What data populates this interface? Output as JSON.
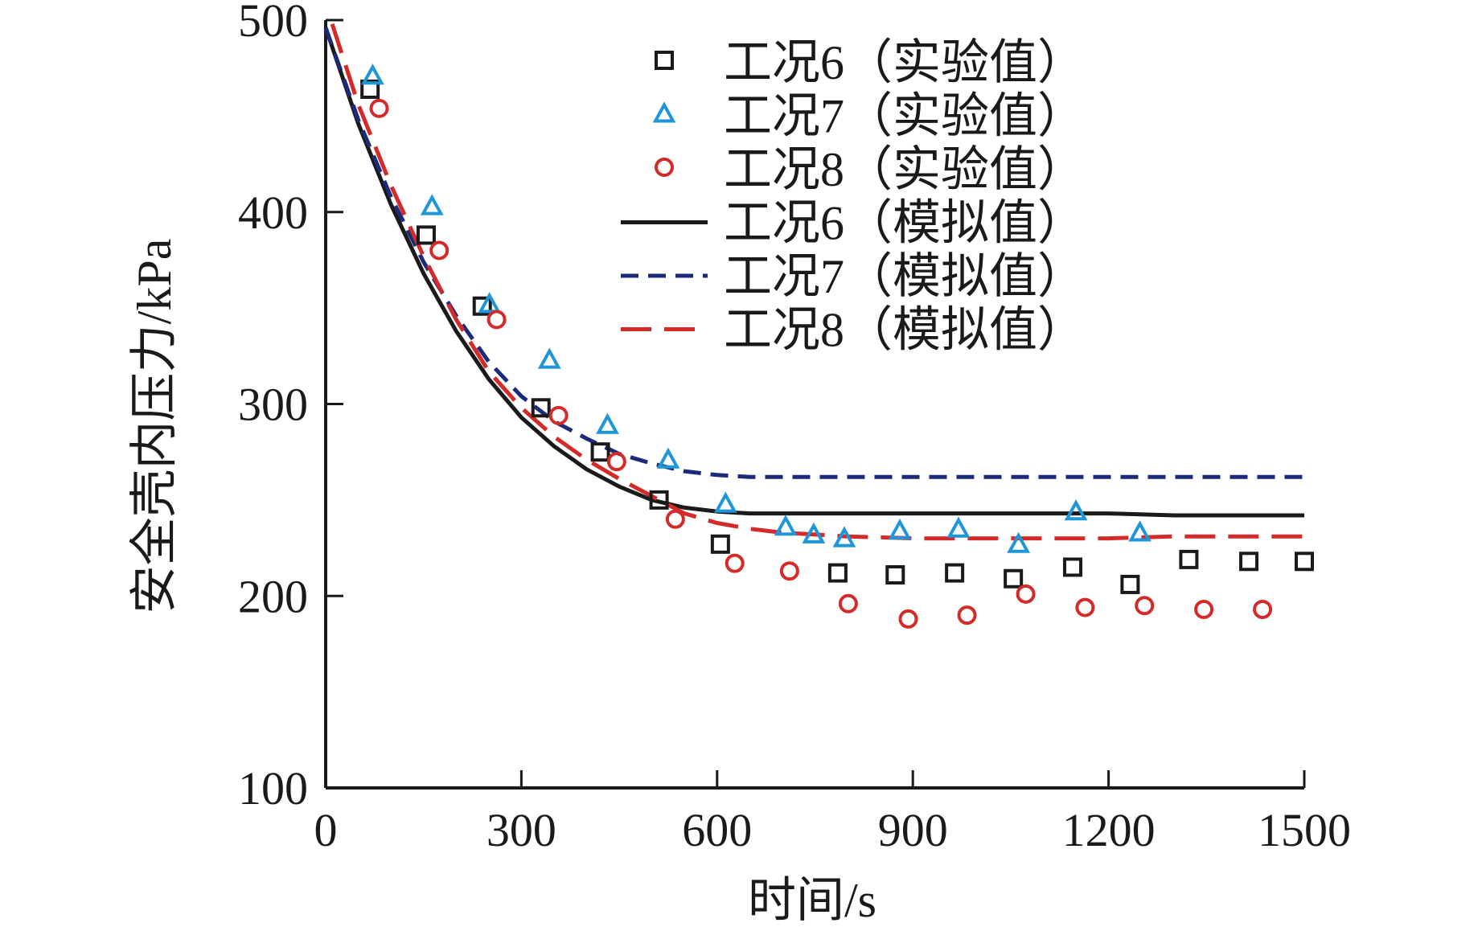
{
  "chart_data": {
    "type": "scatter",
    "xlabel": "时间/s",
    "ylabel": "安全壳内压力/kPa",
    "xlim": [
      0,
      1500
    ],
    "ylim": [
      100,
      500
    ],
    "xticks": [
      "0",
      "300",
      "600",
      "900",
      "1200",
      "1500"
    ],
    "yticks": [
      "100",
      "200",
      "300",
      "400",
      "500"
    ],
    "grid": false,
    "legend_position": "top-right",
    "series": [
      {
        "name": "工况6（实验值）",
        "kind": "marker",
        "marker": "square",
        "color": "#1a1a1a",
        "x": [
          68,
          154,
          240,
          330,
          421,
          511,
          605,
          785,
          873,
          964,
          1054,
          1145,
          1233,
          1323,
          1415,
          1500
        ],
        "y": [
          464,
          388,
          351,
          298,
          275,
          250,
          227,
          212,
          211,
          212,
          209,
          215,
          206,
          219,
          218,
          218
        ]
      },
      {
        "name": "工况7（实验值）",
        "kind": "marker",
        "marker": "triangle",
        "color": "#1e96d8",
        "x": [
          72,
          163,
          251,
          343,
          432,
          525,
          613,
          705,
          748,
          795,
          880,
          970,
          1062,
          1150,
          1248
        ],
        "y": [
          471,
          403,
          352,
          323,
          289,
          271,
          248,
          236,
          232,
          230,
          234,
          235,
          227,
          244,
          233
        ]
      },
      {
        "name": "工况8（实验值）",
        "kind": "marker",
        "marker": "circle",
        "color": "#d42a2a",
        "x": [
          82,
          174,
          262,
          357,
          446,
          536,
          627,
          711,
          801,
          893,
          983,
          1073,
          1164,
          1255,
          1346,
          1436
        ],
        "y": [
          454,
          380,
          344,
          294,
          270,
          240,
          217,
          213,
          196,
          188,
          190,
          201,
          194,
          195,
          193,
          193
        ]
      },
      {
        "name": "工况6（模拟值）",
        "kind": "line",
        "dash": "solid",
        "color": "#1a1a1a",
        "x": [
          0,
          50,
          100,
          150,
          200,
          250,
          300,
          350,
          400,
          450,
          500,
          550,
          600,
          650,
          700,
          800,
          900,
          1000,
          1100,
          1200,
          1300,
          1400,
          1500
        ],
        "y": [
          496,
          446,
          404,
          368,
          338,
          313,
          293,
          278,
          266,
          257,
          250,
          246,
          244,
          243,
          243,
          243,
          243,
          243,
          243,
          243,
          242,
          242,
          242
        ]
      },
      {
        "name": "工况7（模拟值）",
        "kind": "line",
        "dash": "medium",
        "color": "#1c2a7a",
        "x": [
          0,
          50,
          100,
          150,
          200,
          250,
          300,
          350,
          400,
          450,
          500,
          550,
          600,
          650,
          700,
          800,
          900,
          1000,
          1100,
          1200,
          1300,
          1400,
          1500
        ],
        "y": [
          496,
          448,
          408,
          374,
          346,
          322,
          304,
          291,
          282,
          274,
          269,
          265,
          263,
          262,
          262,
          262,
          262,
          262,
          262,
          262,
          262,
          262,
          262
        ]
      },
      {
        "name": "工况8（模拟值）",
        "kind": "line",
        "dash": "long",
        "color": "#d42a2a",
        "x": [
          10,
          50,
          100,
          150,
          200,
          250,
          300,
          350,
          400,
          450,
          500,
          550,
          600,
          650,
          700,
          800,
          900,
          1000,
          1100,
          1200,
          1300,
          1400,
          1500
        ],
        "y": [
          498,
          456,
          414,
          377,
          344,
          317,
          298,
          283,
          271,
          261,
          252,
          243,
          238,
          235,
          233,
          231,
          230,
          230,
          230,
          230,
          231,
          231,
          231
        ]
      }
    ]
  }
}
